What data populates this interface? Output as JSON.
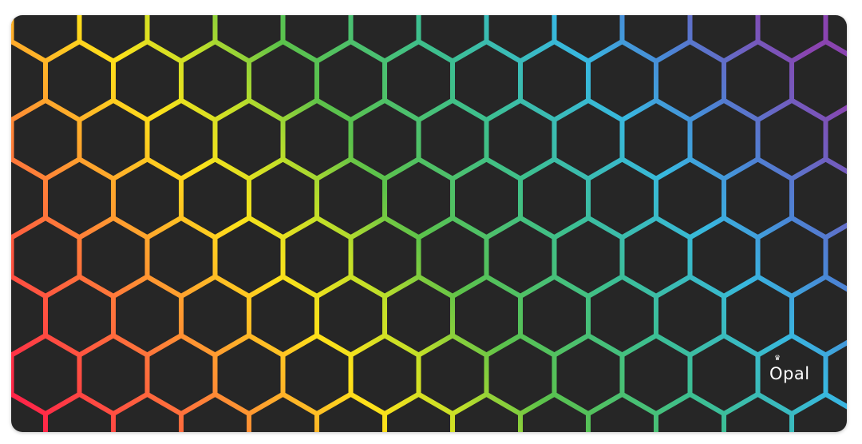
{
  "product": {
    "brand": "Opal",
    "pattern": "hexagon-honeycomb",
    "background_color": "#262626",
    "gradient_colors": [
      "#ff1a4a",
      "#ff7a3a",
      "#ffe11a",
      "#c4e028",
      "#5cc24a",
      "#3dbf8f",
      "#38b8e0",
      "#4a86d6",
      "#8a44b0"
    ]
  },
  "logo": {
    "text": "Opal",
    "icon": "crown-icon"
  }
}
